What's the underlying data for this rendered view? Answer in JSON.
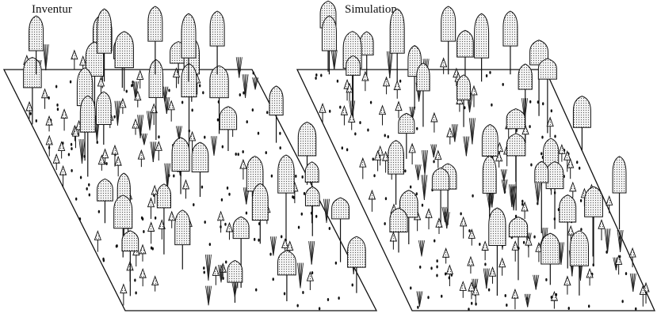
{
  "panels": [
    {
      "title": "Inventur"
    },
    {
      "title": "Simulation"
    }
  ]
}
